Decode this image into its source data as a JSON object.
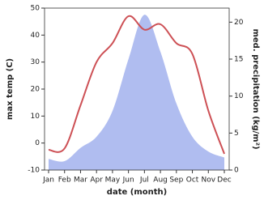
{
  "chart_data": {
    "type": "line_area",
    "categories": [
      "Jan",
      "Feb",
      "Mar",
      "Apr",
      "May",
      "Jun",
      "Jul",
      "Aug",
      "Sep",
      "Oct",
      "Nov",
      "Dec"
    ],
    "x_label": "date (month)",
    "y_label": "max temp (C)",
    "y2_label": "med. precipitation (kg/m²)",
    "ylim": [
      -10,
      50
    ],
    "yticks": [
      -10,
      0,
      10,
      20,
      30,
      40,
      50
    ],
    "y2lim": [
      0,
      21.9
    ],
    "y2ticks": [
      0,
      5,
      10,
      15,
      20
    ],
    "series": [
      {
        "name": "max temp",
        "color": "#cd5055",
        "values": [
          -2.5,
          -2,
          14,
          30,
          37,
          47,
          42,
          44,
          37,
          33,
          12,
          -4
        ]
      },
      {
        "name": "med. precipitation",
        "color": "#b0bdf0",
        "axis": "y2",
        "values": [
          1.5,
          1.2,
          3,
          4.5,
          8,
          15,
          21,
          16,
          9,
          4.5,
          2.5,
          1.7
        ]
      }
    ]
  }
}
